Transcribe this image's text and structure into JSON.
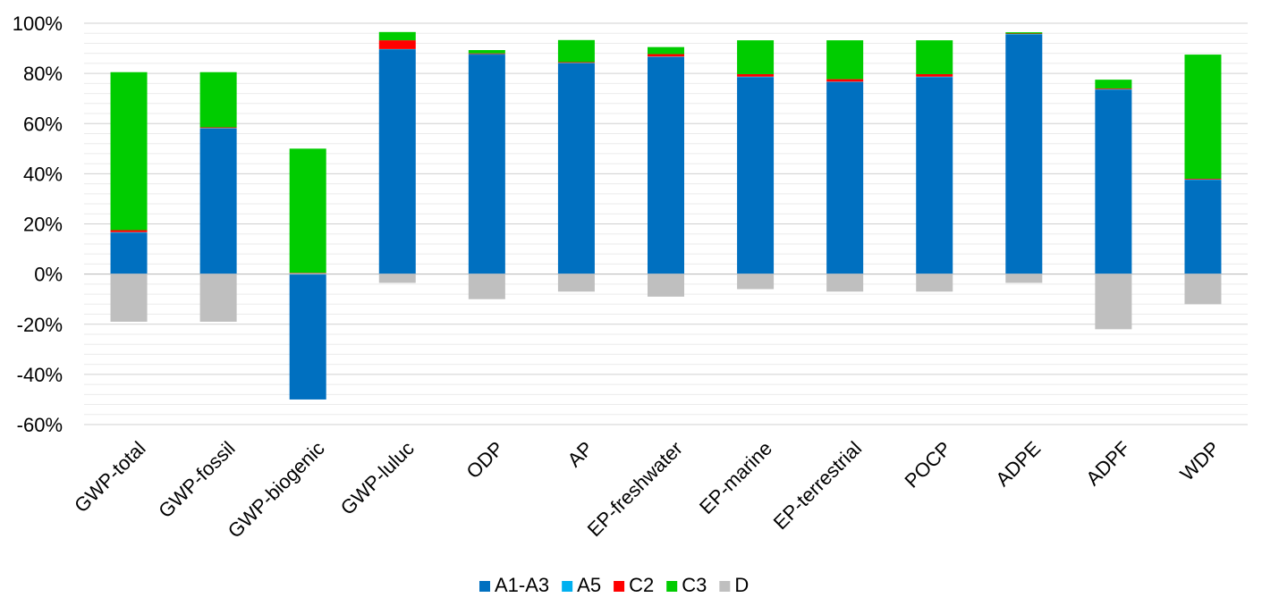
{
  "chart_data": {
    "type": "bar",
    "stacked": true,
    "categories": [
      "GWP-total",
      "GWP-fossil",
      "GWP-biogenic",
      "GWP-luluc",
      "ODP",
      "AP",
      "EP-freshwater",
      "EP-marine",
      "EP-terrestrial",
      "POCP",
      "ADPE",
      "ADPF",
      "WDP"
    ],
    "series": [
      {
        "name": "A1-A3",
        "color": "#0070C0",
        "values": [
          16.5,
          58,
          0,
          89.5,
          87.5,
          84,
          86.5,
          78.5,
          76.5,
          78.5,
          95.5,
          73.5,
          37.5
        ],
        "negative_values": [
          0,
          0,
          -50,
          0,
          0,
          0,
          0,
          0,
          0,
          0,
          0,
          0,
          0
        ]
      },
      {
        "name": "A5",
        "color": "#00B0F0",
        "values": [
          0.2,
          0.2,
          0.3,
          0.2,
          0.2,
          0.2,
          0.2,
          0.2,
          0.2,
          0.2,
          0.2,
          0.2,
          0.2
        ]
      },
      {
        "name": "C2",
        "color": "#FF0000",
        "values": [
          0.8,
          0.3,
          0.2,
          3.5,
          0.3,
          0.3,
          1.0,
          1.0,
          1.0,
          1.0,
          0.2,
          0.3,
          0.3
        ]
      },
      {
        "name": "C3",
        "color": "#00CC00",
        "values": [
          63,
          22,
          49.5,
          3.3,
          1.3,
          8.8,
          2.8,
          13.5,
          15.5,
          13.5,
          0.5,
          3.5,
          49.5
        ]
      },
      {
        "name": "D",
        "color": "#BFBFBF",
        "values": [
          -19,
          -19,
          0,
          -3.5,
          -10,
          -7,
          -9,
          -6,
          -7,
          -7,
          -3.5,
          -22,
          -12
        ]
      }
    ],
    "yaxis": {
      "min": -60,
      "max": 100,
      "major_step": 20,
      "minor_step": 4,
      "tick_labels": [
        "-60%",
        "-40%",
        "-20%",
        "0%",
        "20%",
        "40%",
        "60%",
        "80%",
        "100%"
      ]
    },
    "grid": true,
    "legend_position": "bottom",
    "title": "",
    "xlabel": "",
    "ylabel": ""
  }
}
